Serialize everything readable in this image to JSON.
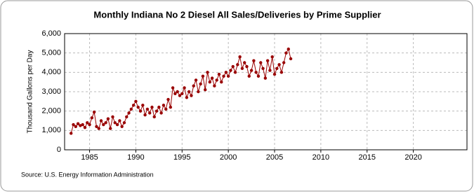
{
  "chart_data": {
    "type": "line",
    "title": "Monthly Indiana No 2 Diesel All Sales/Deliveries by Prime Supplier",
    "y_label": "Thousand Gallons per Day",
    "source": "Source: U.S. Energy Information Administration",
    "color": "#990000",
    "grid": true,
    "xlim": [
      1982.3,
      2025.8
    ],
    "xticks": [
      1985,
      1990,
      1995,
      2000,
      2005,
      2010,
      2015,
      2020
    ],
    "ylim": [
      0,
      6000
    ],
    "yticks": [
      0,
      {
        "value": 1000,
        "label": "1,000"
      },
      {
        "value": 2000,
        "label": "2,000"
      },
      {
        "value": 3000,
        "label": "3,000"
      },
      {
        "value": 4000,
        "label": "4,000"
      },
      {
        "value": 5000,
        "label": "5,000"
      },
      {
        "value": 6000,
        "label": "6,000"
      }
    ],
    "x": [
      1983.0,
      1983.25,
      1983.5,
      1983.75,
      1984.0,
      1984.25,
      1984.5,
      1984.75,
      1985.0,
      1985.25,
      1985.5,
      1985.75,
      1986.0,
      1986.25,
      1986.5,
      1986.75,
      1987.0,
      1987.25,
      1987.5,
      1987.75,
      1988.0,
      1988.25,
      1988.5,
      1988.75,
      1989.0,
      1989.25,
      1989.5,
      1989.75,
      1990.0,
      1990.25,
      1990.5,
      1990.75,
      1991.0,
      1991.25,
      1991.5,
      1991.75,
      1992.0,
      1992.25,
      1992.5,
      1992.75,
      1993.0,
      1993.25,
      1993.5,
      1993.75,
      1994.0,
      1994.25,
      1994.5,
      1994.75,
      1995.0,
      1995.25,
      1995.5,
      1995.75,
      1996.0,
      1996.25,
      1996.5,
      1996.75,
      1997.0,
      1997.25,
      1997.5,
      1997.75,
      1998.0,
      1998.25,
      1998.5,
      1998.75,
      1999.0,
      1999.25,
      1999.5,
      1999.75,
      2000.0,
      2000.25,
      2000.5,
      2000.75,
      2001.0,
      2001.25,
      2001.5,
      2001.75,
      2002.0,
      2002.25,
      2002.5,
      2002.75,
      2003.0,
      2003.25,
      2003.5,
      2003.75,
      2004.0,
      2004.25,
      2004.5,
      2004.75,
      2005.0,
      2005.25,
      2005.5,
      2005.75,
      2006.0,
      2006.25,
      2006.5,
      2006.75
    ],
    "values": [
      850,
      1300,
      1200,
      1350,
      1250,
      1300,
      1150,
      1400,
      1300,
      1650,
      1950,
      1200,
      1100,
      1500,
      1300,
      1400,
      1600,
      1100,
      1700,
      1400,
      1300,
      1500,
      1200,
      1400,
      1700,
      1900,
      2100,
      2300,
      2500,
      2200,
      2000,
      2300,
      1800,
      2100,
      1900,
      2200,
      1700,
      2000,
      2200,
      1900,
      2300,
      2100,
      2600,
      2200,
      3200,
      2900,
      3000,
      2800,
      2900,
      3200,
      2700,
      3000,
      2800,
      3300,
      3600,
      3000,
      3400,
      3800,
      3100,
      4000,
      3500,
      3700,
      3300,
      3600,
      3900,
      3500,
      3800,
      4000,
      3800,
      4100,
      4300,
      4000,
      4400,
      4800,
      4200,
      4500,
      4300,
      3800,
      4100,
      4600,
      4000,
      3800,
      4500,
      4200,
      3700,
      4600,
      4100,
      4800,
      3900,
      4200,
      4400,
      4000,
      4500,
      5000,
      5200,
      4700
    ]
  }
}
